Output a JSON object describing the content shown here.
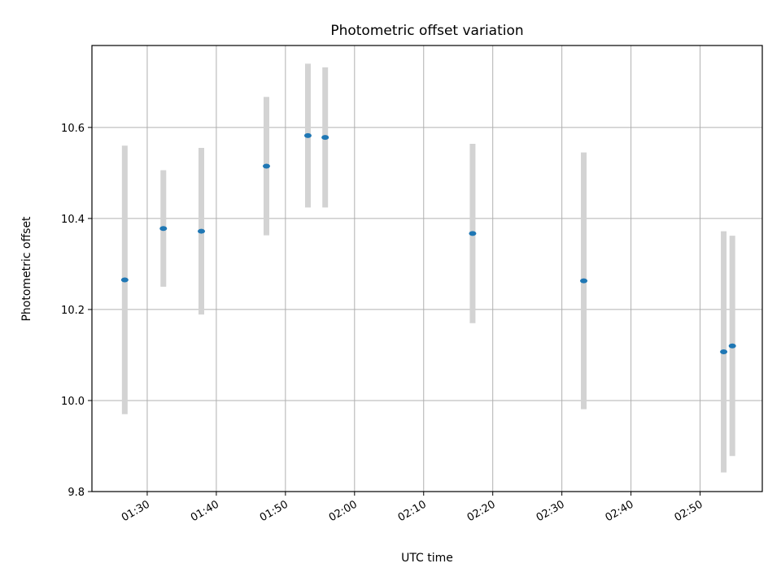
{
  "chart_data": {
    "type": "scatter",
    "title": "Photometric offset variation",
    "xlabel": "UTC time",
    "ylabel": "Photometric offset",
    "x_axis": "time",
    "xlim": [
      "01:22:00",
      "02:59:00"
    ],
    "ylim": [
      9.8,
      10.78
    ],
    "x_ticks": [
      "01:30",
      "01:40",
      "01:50",
      "02:00",
      "02:10",
      "02:20",
      "02:30",
      "02:40",
      "02:50"
    ],
    "y_ticks": [
      "9.8",
      "10.0",
      "10.2",
      "10.4",
      "10.6"
    ],
    "grid": true,
    "point_color": "#1f77b4",
    "errorbar_color": "#d3d3d3",
    "points": [
      {
        "time": "01:26:45",
        "value": 10.265,
        "error": 0.295
      },
      {
        "time": "01:32:20",
        "value": 10.378,
        "error": 0.128
      },
      {
        "time": "01:37:50",
        "value": 10.372,
        "error": 0.183
      },
      {
        "time": "01:47:15",
        "value": 10.515,
        "error": 0.152
      },
      {
        "time": "01:53:15",
        "value": 10.582,
        "error": 0.158
      },
      {
        "time": "01:55:45",
        "value": 10.578,
        "error": 0.154
      },
      {
        "time": "02:17:05",
        "value": 10.367,
        "error": 0.197
      },
      {
        "time": "02:33:10",
        "value": 10.263,
        "error": 0.282
      },
      {
        "time": "02:53:25",
        "value": 10.107,
        "error": 0.265
      },
      {
        "time": "02:54:40",
        "value": 10.12,
        "error": 0.242
      }
    ]
  }
}
